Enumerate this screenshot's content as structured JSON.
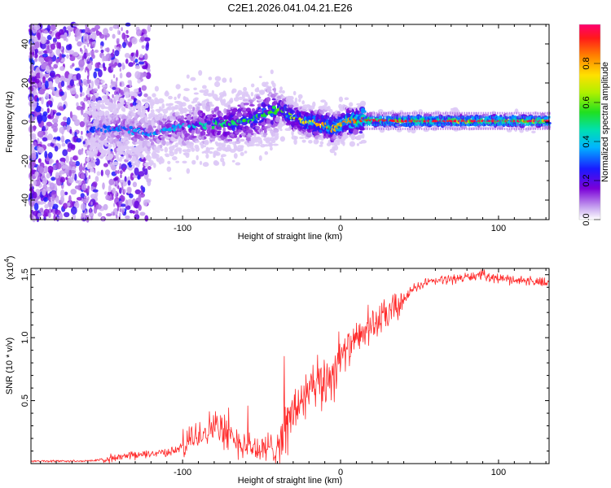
{
  "title": "C2E1.2026.041.04.21.E26",
  "colors": {
    "snr_line": "#ff2a2a",
    "frame": "#000000"
  },
  "chart_data": [
    {
      "type": "heatmap",
      "xlabel": "Height of straight line (km)",
      "ylabel": "Frequency (Hz)",
      "xlim": [
        -196,
        132
      ],
      "ylim": [
        -50,
        50
      ],
      "xticks": [
        -100,
        0,
        100
      ],
      "yticks": [
        -40,
        -20,
        0,
        20,
        40
      ],
      "xtick_labels": [
        "-100",
        "0",
        "100"
      ],
      "ytick_labels": [
        "-40",
        "-20",
        "0",
        "20",
        "40"
      ],
      "colorbar": {
        "label": "Normalized spectral amplitude",
        "range": [
          0,
          1
        ],
        "ticks": [
          0.0,
          0.2,
          0.4,
          0.6,
          0.8
        ],
        "tick_labels": [
          "0.0",
          "0.2",
          "0.4",
          "0.6",
          "0.8"
        ]
      },
      "ridge": {
        "x": [
          -158,
          -140,
          -120,
          -100,
          -80,
          -60,
          -45,
          -38,
          -30,
          -20,
          -10,
          -5,
          0,
          5,
          10,
          15,
          40,
          80,
          132
        ],
        "y": [
          -4,
          -3,
          -6,
          -2,
          -1,
          0,
          5,
          7,
          2,
          0,
          -1,
          -3,
          -2,
          1,
          0,
          1,
          0.5,
          0.5,
          0.5
        ],
        "amplitude": [
          0.25,
          0.3,
          0.3,
          0.35,
          0.45,
          0.5,
          0.5,
          0.55,
          0.6,
          0.7,
          0.75,
          0.75,
          0.75,
          0.8,
          0.85,
          0.92,
          0.92,
          0.95,
          0.95
        ]
      }
    },
    {
      "type": "line",
      "xlabel": "Height of straight line (km)",
      "ylabel": "SNR (10 * v/v)",
      "yunit_label": "(x10",
      "yunit_exp": "4",
      "yunit_close": ")",
      "xlim": [
        -196,
        132
      ],
      "ylim": [
        0,
        1.55
      ],
      "xticks": [
        -100,
        0,
        100
      ],
      "yticks": [
        0.5,
        1.0,
        1.5
      ],
      "xtick_labels": [
        "-100",
        "0",
        "100"
      ],
      "ytick_labels": [
        "0.5",
        "1.0",
        "1.5"
      ],
      "series": [
        {
          "name": "SNR",
          "x": [
            -196,
            -160,
            -140,
            -120,
            -105,
            -95,
            -88,
            -80,
            -70,
            -60,
            -50,
            -45,
            -40,
            -30,
            -25,
            -15,
            -10,
            -5,
            0,
            10,
            20,
            30,
            40,
            45,
            50,
            60,
            80,
            90,
            100,
            120,
            132
          ],
          "y": [
            0.02,
            0.02,
            0.05,
            0.08,
            0.1,
            0.18,
            0.25,
            0.3,
            0.22,
            0.15,
            0.1,
            0.12,
            0.15,
            0.4,
            0.5,
            0.6,
            0.65,
            0.72,
            0.85,
            0.98,
            1.1,
            1.18,
            1.3,
            1.38,
            1.42,
            1.45,
            1.48,
            1.5,
            1.47,
            1.45,
            1.43
          ]
        }
      ]
    }
  ]
}
